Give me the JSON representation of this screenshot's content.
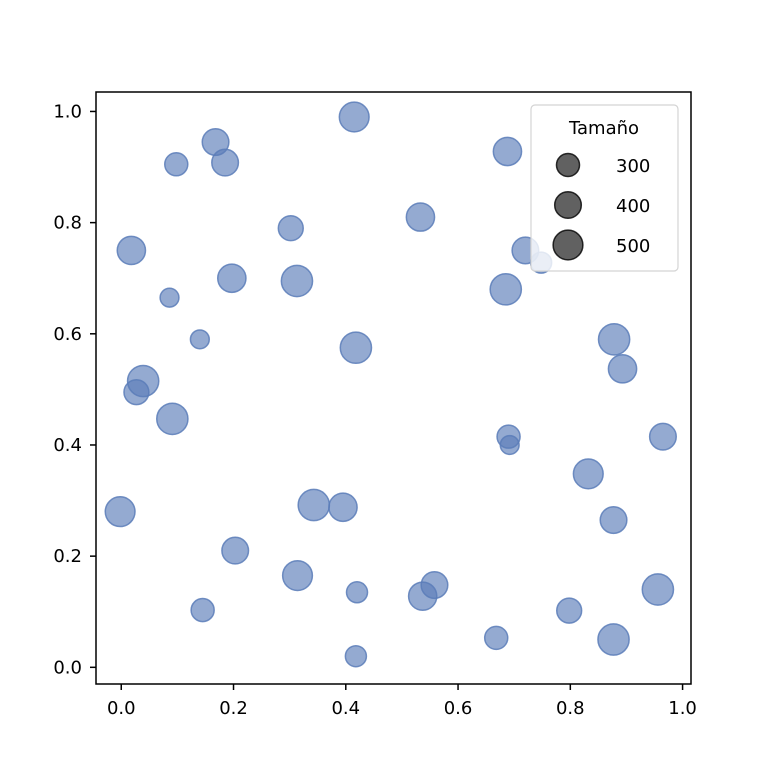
{
  "chart_data": {
    "type": "scatter",
    "title": "",
    "xlabel": "",
    "ylabel": "",
    "xlim": [
      -0.045,
      1.015
    ],
    "ylim": [
      -0.03,
      1.035
    ],
    "xticks": [
      "0.0",
      "0.2",
      "0.4",
      "0.6",
      "0.8",
      "1.0"
    ],
    "yticks": [
      "0.0",
      "0.2",
      "0.4",
      "0.6",
      "0.8",
      "1.0"
    ],
    "grid": false,
    "point_color": "#5a7cb8",
    "point_alpha": 0.65,
    "legend": {
      "title": "Tamaño",
      "placement": "top-right",
      "color": "#3a3a3a",
      "entries": [
        {
          "label": "300",
          "size": 300
        },
        {
          "label": "400",
          "size": 400
        },
        {
          "label": "500",
          "size": 500
        }
      ]
    },
    "points": [
      {
        "x": 0.415,
        "y": 0.99,
        "s": 500
      },
      {
        "x": 0.168,
        "y": 0.945,
        "s": 400
      },
      {
        "x": 0.098,
        "y": 0.905,
        "s": 300
      },
      {
        "x": 0.185,
        "y": 0.908,
        "s": 400
      },
      {
        "x": 0.688,
        "y": 0.928,
        "s": 450
      },
      {
        "x": 0.533,
        "y": 0.81,
        "s": 450
      },
      {
        "x": 0.302,
        "y": 0.79,
        "s": 350
      },
      {
        "x": 0.018,
        "y": 0.75,
        "s": 450
      },
      {
        "x": 0.72,
        "y": 0.75,
        "s": 400
      },
      {
        "x": 0.748,
        "y": 0.728,
        "s": 250
      },
      {
        "x": 0.197,
        "y": 0.7,
        "s": 450
      },
      {
        "x": 0.313,
        "y": 0.695,
        "s": 550
      },
      {
        "x": 0.685,
        "y": 0.68,
        "s": 550
      },
      {
        "x": 0.086,
        "y": 0.665,
        "s": 200
      },
      {
        "x": 0.14,
        "y": 0.59,
        "s": 200
      },
      {
        "x": 0.418,
        "y": 0.575,
        "s": 550
      },
      {
        "x": 0.878,
        "y": 0.59,
        "s": 550
      },
      {
        "x": 0.893,
        "y": 0.537,
        "s": 450
      },
      {
        "x": 0.039,
        "y": 0.515,
        "s": 550
      },
      {
        "x": 0.027,
        "y": 0.495,
        "s": 350
      },
      {
        "x": 0.091,
        "y": 0.447,
        "s": 550
      },
      {
        "x": 0.69,
        "y": 0.415,
        "s": 300
      },
      {
        "x": 0.692,
        "y": 0.4,
        "s": 200
      },
      {
        "x": 0.965,
        "y": 0.415,
        "s": 400
      },
      {
        "x": 0.832,
        "y": 0.348,
        "s": 500
      },
      {
        "x": 0.877,
        "y": 0.265,
        "s": 400
      },
      {
        "x": -0.002,
        "y": 0.28,
        "s": 500
      },
      {
        "x": 0.343,
        "y": 0.292,
        "s": 550
      },
      {
        "x": 0.395,
        "y": 0.288,
        "s": 450
      },
      {
        "x": 0.203,
        "y": 0.21,
        "s": 400
      },
      {
        "x": 0.314,
        "y": 0.165,
        "s": 500
      },
      {
        "x": 0.42,
        "y": 0.135,
        "s": 250
      },
      {
        "x": 0.558,
        "y": 0.148,
        "s": 400
      },
      {
        "x": 0.537,
        "y": 0.128,
        "s": 450
      },
      {
        "x": 0.956,
        "y": 0.14,
        "s": 550
      },
      {
        "x": 0.145,
        "y": 0.103,
        "s": 300
      },
      {
        "x": 0.798,
        "y": 0.102,
        "s": 350
      },
      {
        "x": 0.668,
        "y": 0.053,
        "s": 300
      },
      {
        "x": 0.877,
        "y": 0.05,
        "s": 550
      },
      {
        "x": 0.418,
        "y": 0.02,
        "s": 250
      }
    ]
  }
}
